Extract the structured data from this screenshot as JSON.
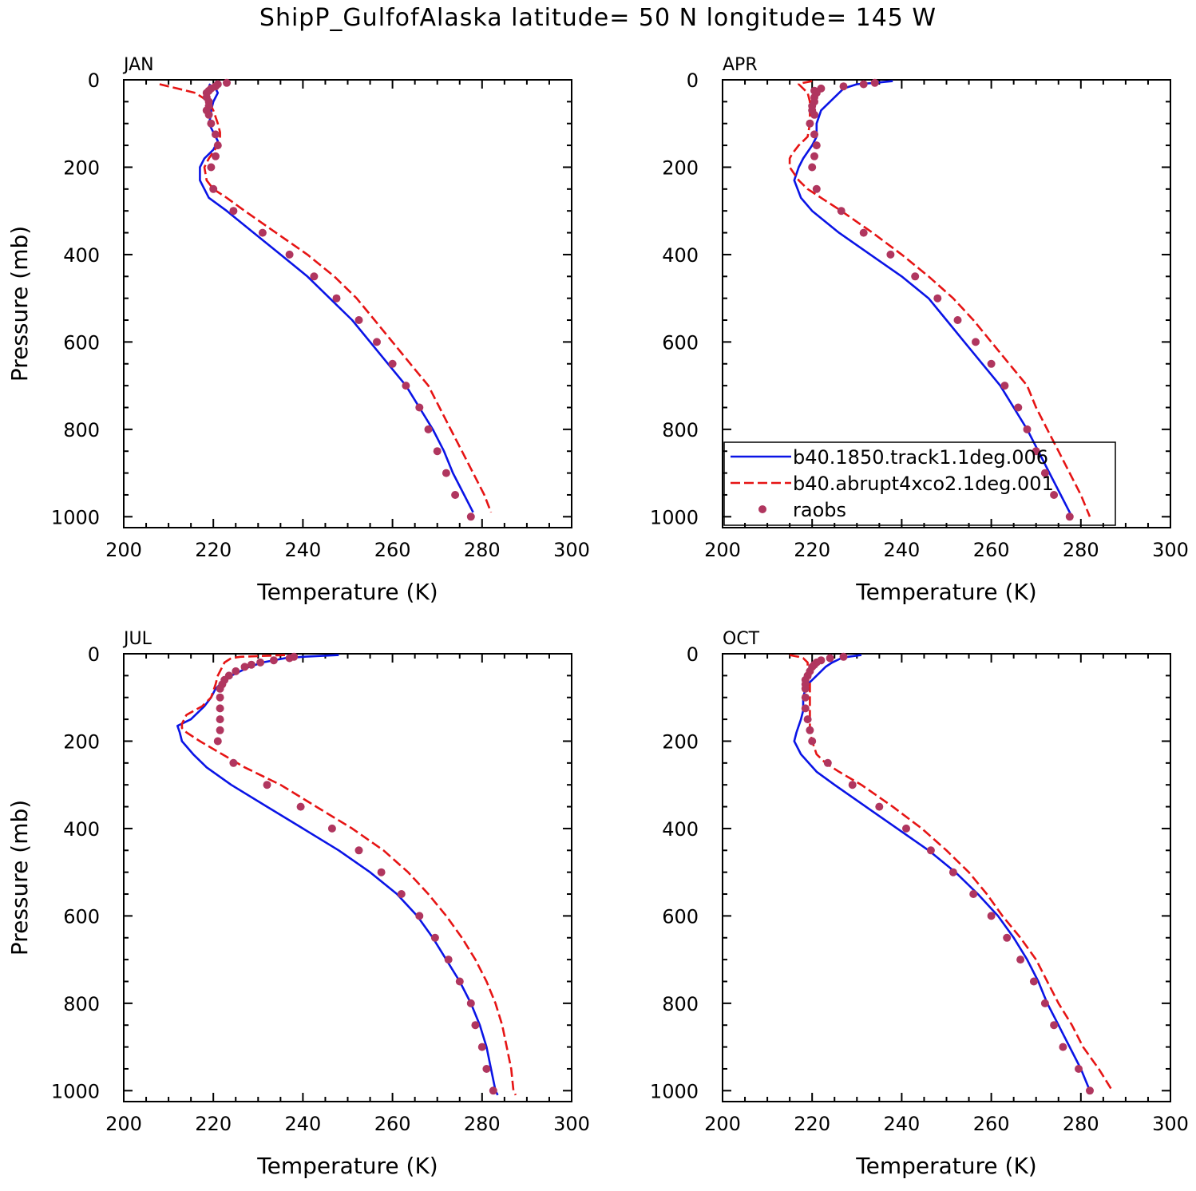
{
  "figure": {
    "title": "ShipP_GulfofAlaska  latitude= 50 N longitude= 145 W"
  },
  "colors": {
    "control": "#0a14e6",
    "abrupt4xco2": "#e61414",
    "raobs": "#b0365f",
    "axes": "#000000"
  },
  "legend": {
    "panel": "APR",
    "items": [
      {
        "label": "b40.1850.track1.1deg.006",
        "style": "solid",
        "color": "#0a14e6"
      },
      {
        "label": "b40.abrupt4xco2.1deg.001",
        "style": "dashed",
        "color": "#e61414"
      },
      {
        "label": "raobs",
        "style": "marker",
        "color": "#b0365f"
      }
    ]
  },
  "chart_data": [
    {
      "type": "line",
      "panel": "JAN",
      "title": "JAN",
      "xlabel": "Temperature (K)",
      "ylabel": "Pressure (mb)",
      "xlim": [
        200,
        300
      ],
      "ylim": [
        1025,
        0
      ],
      "xticks": [
        200,
        220,
        240,
        260,
        280,
        300
      ],
      "yticks": [
        0,
        200,
        400,
        600,
        800,
        1000
      ],
      "series": [
        {
          "name": "b40.1850.track1.1deg.006",
          "style": "solid",
          "p": [
            10,
            20,
            30,
            50,
            70,
            80,
            100,
            120,
            140,
            160,
            180,
            200,
            230,
            270,
            300,
            350,
            400,
            450,
            500,
            550,
            600,
            650,
            700,
            750,
            800,
            850,
            900,
            950,
            990
          ],
          "t": [
            219,
            220.5,
            221,
            220,
            219.5,
            219.5,
            219,
            220,
            221,
            220,
            218,
            217,
            217,
            219,
            223,
            229,
            235,
            241,
            246,
            251,
            255,
            259,
            263,
            266,
            269,
            271.5,
            273.5,
            276,
            278
          ]
        },
        {
          "name": "b40.abrupt4xco2.1deg.001",
          "style": "dashed",
          "p": [
            10,
            20,
            30,
            50,
            70,
            100,
            120,
            130,
            150,
            180,
            200,
            230,
            250,
            270,
            300,
            350,
            400,
            450,
            500,
            550,
            600,
            650,
            700,
            750,
            800,
            850,
            900,
            950,
            990
          ],
          "t": [
            208,
            212,
            216,
            219,
            220,
            221,
            221.5,
            221.5,
            221,
            219,
            218,
            218.5,
            220,
            223,
            227,
            234,
            241,
            247,
            252,
            256,
            260,
            264,
            268,
            270.5,
            273,
            275.5,
            278,
            280.5,
            282
          ]
        }
      ],
      "raobs": {
        "p": [
          7,
          10,
          15,
          20,
          25,
          30,
          40,
          50,
          60,
          70,
          80,
          100,
          125,
          150,
          175,
          200,
          250,
          300,
          350,
          400,
          450,
          500,
          550,
          600,
          650,
          700,
          750,
          800,
          850,
          900,
          950,
          1000
        ],
        "t": [
          223,
          221,
          220.5,
          219.5,
          219,
          218.5,
          218.5,
          219,
          219,
          218.5,
          219,
          219.5,
          220.5,
          221,
          220.5,
          219.5,
          220,
          224.5,
          231,
          237,
          242.5,
          247.5,
          252.5,
          256.5,
          260,
          263,
          266,
          268,
          270,
          272,
          274,
          277.5
        ]
      }
    },
    {
      "type": "line",
      "panel": "APR",
      "title": "APR",
      "xlabel": "Temperature (K)",
      "ylabel": "",
      "xlim": [
        200,
        300
      ],
      "ylim": [
        1025,
        0
      ],
      "xticks": [
        200,
        220,
        240,
        260,
        280,
        300
      ],
      "yticks": [
        0,
        200,
        400,
        600,
        800,
        1000
      ],
      "series": [
        {
          "name": "b40.1850.track1.1deg.006",
          "style": "solid",
          "p": [
            3,
            7,
            10,
            20,
            30,
            50,
            70,
            100,
            130,
            150,
            180,
            200,
            230,
            270,
            300,
            350,
            400,
            450,
            500,
            550,
            600,
            650,
            700,
            750,
            800,
            850,
            900,
            950,
            1000
          ],
          "t": [
            238,
            234,
            230,
            227,
            226,
            224,
            222,
            221,
            221,
            220,
            218,
            217,
            216,
            217.5,
            220,
            226,
            233,
            240,
            246,
            250,
            254,
            258,
            262,
            265,
            268,
            270.5,
            273,
            275.5,
            278
          ]
        },
        {
          "name": "b40.abrupt4xco2.1deg.001",
          "style": "dashed",
          "p": [
            3,
            7,
            10,
            20,
            30,
            50,
            70,
            100,
            130,
            150,
            170,
            180,
            200,
            230,
            250,
            270,
            300,
            350,
            400,
            450,
            500,
            550,
            600,
            650,
            700,
            750,
            800,
            850,
            900,
            950,
            1000
          ],
          "t": [
            220,
            218,
            217,
            218,
            219,
            219.5,
            219.5,
            219.5,
            219,
            217,
            215.5,
            215,
            215,
            217,
            219,
            222,
            226.5,
            233.5,
            240,
            246,
            251.5,
            256,
            260,
            264,
            268,
            270,
            272.5,
            275,
            277.5,
            280,
            282
          ]
        }
      ],
      "raobs": {
        "p": [
          7,
          10,
          15,
          20,
          25,
          30,
          40,
          50,
          60,
          70,
          80,
          100,
          125,
          150,
          175,
          200,
          250,
          300,
          350,
          400,
          450,
          500,
          550,
          600,
          650,
          700,
          750,
          800,
          850,
          900,
          950,
          1000
        ],
        "t": [
          234,
          231.5,
          227,
          222,
          220.5,
          221,
          220.5,
          220.5,
          220,
          220,
          220.5,
          219.5,
          220.5,
          221,
          220.5,
          220,
          221,
          226.5,
          231.5,
          237.5,
          243,
          248,
          252.5,
          256.5,
          260,
          263,
          266,
          268,
          270,
          272,
          274,
          277.5
        ]
      }
    },
    {
      "type": "line",
      "panel": "JUL",
      "title": "JUL",
      "xlabel": "Temperature (K)",
      "ylabel": "Pressure (mb)",
      "xlim": [
        200,
        300
      ],
      "ylim": [
        1025,
        0
      ],
      "xticks": [
        200,
        220,
        240,
        260,
        280,
        300
      ],
      "yticks": [
        0,
        200,
        400,
        600,
        800,
        1000
      ],
      "series": [
        {
          "name": "b40.1850.track1.1deg.006",
          "style": "solid",
          "p": [
            3,
            7,
            10,
            20,
            30,
            50,
            70,
            80,
            100,
            120,
            150,
            165,
            180,
            200,
            230,
            260,
            300,
            350,
            400,
            450,
            500,
            550,
            600,
            650,
            700,
            750,
            800,
            850,
            900,
            950,
            1000,
            1010
          ],
          "t": [
            248,
            240,
            236,
            231,
            228,
            224,
            221.5,
            220.5,
            219.5,
            218,
            215,
            212,
            212.5,
            213,
            215.5,
            218.5,
            224,
            232,
            240,
            248,
            255,
            261,
            265.5,
            269,
            272,
            275,
            277.5,
            279.5,
            281,
            282,
            283,
            283.5
          ]
        },
        {
          "name": "b40.abrupt4xco2.1deg.001",
          "style": "dashed",
          "p": [
            3,
            7,
            10,
            20,
            30,
            50,
            70,
            100,
            120,
            140,
            160,
            170,
            180,
            200,
            230,
            260,
            300,
            350,
            400,
            450,
            500,
            550,
            600,
            650,
            700,
            750,
            800,
            850,
            900,
            950,
            1000,
            1010
          ],
          "t": [
            236,
            226,
            224,
            222.5,
            222,
            221,
            220.5,
            219.5,
            217.5,
            214,
            213,
            213,
            214,
            217,
            222,
            227,
            235,
            243,
            251,
            258,
            263.5,
            268,
            272,
            275.5,
            278.5,
            281,
            283,
            284.5,
            285.5,
            286.5,
            287,
            287.5
          ]
        }
      ],
      "raobs": {
        "p": [
          7,
          10,
          15,
          20,
          25,
          30,
          40,
          50,
          60,
          70,
          80,
          100,
          125,
          150,
          175,
          200,
          250,
          300,
          350,
          400,
          450,
          500,
          550,
          600,
          650,
          700,
          750,
          800,
          850,
          900,
          950,
          1000
        ],
        "t": [
          238,
          237,
          233.5,
          230.5,
          228.5,
          227,
          225,
          223.5,
          222.5,
          222,
          221.5,
          221.5,
          221.5,
          221.5,
          221.5,
          221,
          224.5,
          232,
          239.5,
          246.5,
          252.5,
          257.5,
          262,
          266,
          269.5,
          272.5,
          275,
          277.5,
          278.5,
          280,
          281,
          282.5
        ]
      }
    },
    {
      "type": "line",
      "panel": "OCT",
      "title": "OCT",
      "xlabel": "Temperature (K)",
      "ylabel": "",
      "xlim": [
        200,
        300
      ],
      "ylim": [
        1025,
        0
      ],
      "xticks": [
        200,
        220,
        240,
        260,
        280,
        300
      ],
      "yticks": [
        0,
        200,
        400,
        600,
        800,
        1000
      ],
      "series": [
        {
          "name": "b40.1850.track1.1deg.006",
          "style": "solid",
          "p": [
            3,
            7,
            10,
            20,
            30,
            50,
            70,
            80,
            100,
            130,
            150,
            180,
            200,
            230,
            270,
            300,
            350,
            400,
            450,
            500,
            550,
            600,
            650,
            700,
            750,
            800,
            850,
            900,
            950,
            1000
          ],
          "t": [
            231,
            228,
            226.5,
            224.5,
            223,
            221,
            219,
            218.5,
            218,
            218,
            217.5,
            216.5,
            216,
            217.5,
            221,
            225,
            232,
            239,
            246,
            252,
            257,
            261.5,
            265,
            268,
            270.5,
            272.5,
            275,
            277.5,
            280,
            282
          ]
        },
        {
          "name": "b40.abrupt4xco2.1deg.001",
          "style": "dashed",
          "p": [
            3,
            7,
            10,
            20,
            30,
            50,
            70,
            100,
            130,
            150,
            180,
            200,
            230,
            250,
            270,
            300,
            350,
            400,
            450,
            500,
            550,
            600,
            650,
            700,
            750,
            800,
            850,
            900,
            950,
            1000
          ],
          "t": [
            215,
            217,
            218,
            219,
            219,
            219.5,
            219.5,
            219.5,
            219.5,
            219.5,
            219.5,
            220,
            221,
            223,
            226,
            231,
            238,
            244.5,
            250,
            255,
            259,
            262.5,
            266.5,
            270,
            272.5,
            275,
            278,
            280.5,
            284,
            287
          ]
        }
      ],
      "raobs": {
        "p": [
          7,
          10,
          15,
          20,
          25,
          30,
          40,
          50,
          60,
          70,
          80,
          100,
          125,
          150,
          175,
          200,
          250,
          300,
          350,
          400,
          450,
          500,
          550,
          600,
          650,
          700,
          750,
          800,
          850,
          900,
          950,
          1000
        ],
        "t": [
          227,
          224,
          222,
          221,
          220.5,
          220,
          219.5,
          219,
          218.5,
          218.5,
          218.5,
          218.5,
          218.5,
          219,
          219.5,
          220,
          223.5,
          229,
          235,
          241,
          246.5,
          251.5,
          256,
          260,
          263.5,
          266.5,
          269.5,
          272,
          274,
          276,
          279.5,
          282
        ]
      }
    }
  ]
}
